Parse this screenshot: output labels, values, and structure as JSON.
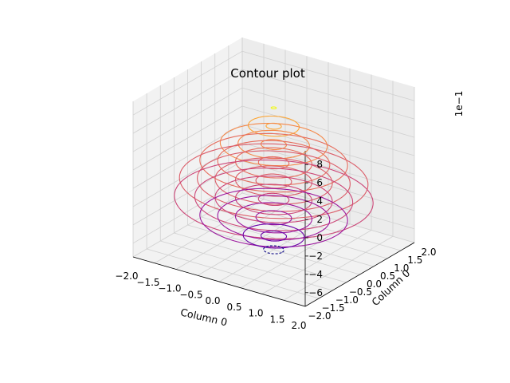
{
  "chart_data": {
    "type": "contour3d",
    "title": "Contour plot",
    "xlabel": "Column 0",
    "ylabel": "Column 0",
    "zlabel": "",
    "z_offset_label": "1e−1",
    "xlim": [
      -2.0,
      2.0
    ],
    "ylim": [
      -2.0,
      2.0
    ],
    "zlim": [
      -0.75,
      0.95
    ],
    "x_ticks": [
      "−2.0",
      "−1.5",
      "−1.0",
      "−0.5",
      "0.0",
      "0.5",
      "1.0",
      "1.5",
      "2.0"
    ],
    "y_ticks": [
      "−2.0",
      "−1.5",
      "−1.0",
      "−0.5",
      "0.0",
      "0.5",
      "1.0",
      "1.5",
      "2.0"
    ],
    "z_ticks": [
      "−6",
      "−4",
      "−2",
      "0",
      "2",
      "4",
      "6",
      "8"
    ],
    "colormap": "plasma",
    "grid": true,
    "levels": [
      {
        "z": 0.8,
        "color": "#f0f921",
        "radii": [
          0.05
        ]
      },
      {
        "z": 0.6,
        "color": "#fca636",
        "radii": [
          0.15,
          0.5
        ]
      },
      {
        "z": 0.4,
        "color": "#f48849",
        "radii": [
          0.25,
          0.7,
          1.05
        ]
      },
      {
        "z": 0.2,
        "color": "#e66c5c",
        "radii": [
          0.3,
          0.75,
          1.1,
          1.45
        ]
      },
      {
        "z": 0.0,
        "color": "#db5c68",
        "radii": [
          0.35,
          0.75,
          1.15,
          1.5,
          1.85
        ]
      },
      {
        "z": -0.2,
        "color": "#cc4778",
        "radii": [
          0.3,
          0.75,
          1.15,
          1.55,
          1.95
        ]
      },
      {
        "z": -0.4,
        "color": "#9c179e",
        "radii": [
          0.35,
          0.75,
          1.1,
          1.45
        ]
      },
      {
        "z": -0.6,
        "color": "#6a00a8",
        "radii": [
          0.25,
          0.6
        ]
      },
      {
        "z": -0.75,
        "color": "#0d0887",
        "radii": [
          0.2
        ],
        "dashed": true
      }
    ]
  }
}
